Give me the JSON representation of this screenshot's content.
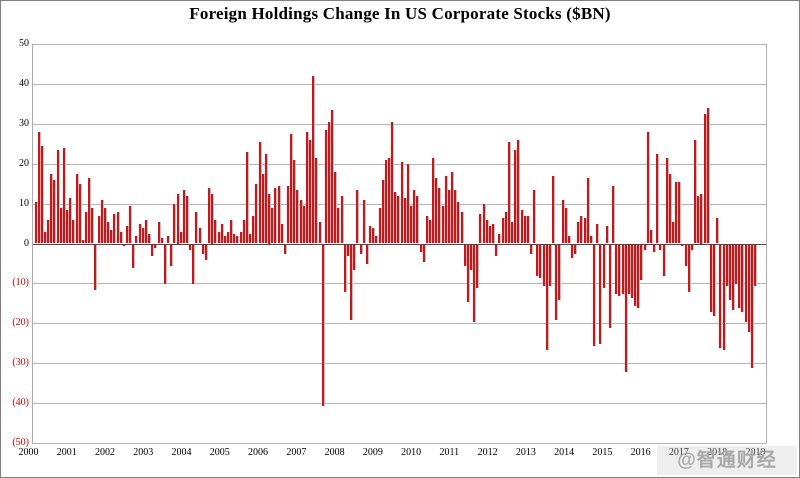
{
  "title": "Foreign Holdings Change In US Corporate Stocks ($BN)",
  "watermark": "@智通财经APP",
  "colors": {
    "bar": "#bf1a1d",
    "bar_highlight": "#efadad",
    "gridline": "#b5b5b5",
    "zero_line": "#4a4a4a",
    "negative_tick": "#d40000",
    "text": "#000000",
    "watermark_text": "#a9a9a9"
  },
  "chart_data": {
    "type": "bar",
    "title": "Foreign Holdings Change In US Corporate Stocks ($BN)",
    "xlabel": "",
    "ylabel": "",
    "unit": "$BN",
    "frequency": "monthly",
    "ylim": [
      -50,
      50
    ],
    "grid": true,
    "y_ticks": [
      50,
      40,
      30,
      20,
      10,
      0,
      -10,
      -20,
      -30,
      -40,
      -50
    ],
    "y_tick_labels": [
      "50",
      "40",
      "30",
      "20",
      "10",
      "0",
      "(10)",
      "(20)",
      "(30)",
      "(40)",
      "(50)"
    ],
    "year_labels": [
      "2000",
      "2001",
      "2002",
      "2003",
      "2004",
      "2005",
      "2006",
      "2007",
      "2008",
      "2009",
      "2010",
      "2011",
      "2012",
      "2013",
      "2014",
      "2015",
      "2016",
      "2017",
      "2018",
      "2019"
    ],
    "series": [
      {
        "year": 2000,
        "values": [
          10.5,
          28,
          24.5,
          3,
          6,
          17.5,
          16,
          23.5,
          9,
          24,
          8.5,
          11.5
        ]
      },
      {
        "year": 2001,
        "values": [
          6,
          17.5,
          15,
          1,
          8,
          16.5,
          9,
          -11.5,
          7,
          11,
          9,
          5.5
        ]
      },
      {
        "year": 2002,
        "values": [
          3.5,
          7.5,
          8,
          3,
          -0.5,
          4.5,
          9.5,
          -6,
          2,
          5,
          4,
          6
        ]
      },
      {
        "year": 2003,
        "values": [
          2.5,
          -3,
          -1,
          5.5,
          1.5,
          -10,
          2,
          -5.5,
          10,
          12.5,
          3,
          13.5
        ]
      },
      {
        "year": 2004,
        "values": [
          12,
          -1.5,
          -10,
          8,
          4,
          -2.5,
          -4,
          14,
          12.5,
          6,
          3,
          5
        ]
      },
      {
        "year": 2005,
        "values": [
          2,
          3,
          6,
          2.5,
          2,
          3,
          6,
          23,
          2.5,
          7,
          15,
          25.5
        ]
      },
      {
        "year": 2006,
        "values": [
          17.5,
          22.5,
          12.5,
          9,
          14,
          14.5,
          5,
          -2.5,
          14.5,
          27.5,
          21,
          13.5
        ]
      },
      {
        "year": 2007,
        "values": [
          11,
          9.5,
          28,
          26,
          42,
          21.5,
          5.5,
          -40.5,
          28.5,
          30.5,
          33.5,
          18
        ]
      },
      {
        "year": 2008,
        "values": [
          9,
          12,
          -12,
          -3,
          -19,
          -6.5,
          13.5,
          -2.5,
          11,
          -5,
          4.5,
          4
        ]
      },
      {
        "year": 2009,
        "values": [
          2,
          9,
          16,
          21,
          21.5,
          30.5,
          13,
          12,
          20.5,
          11.5,
          20,
          9.5
        ]
      },
      {
        "year": 2010,
        "values": [
          13.5,
          12,
          -2,
          -4.5,
          7,
          6,
          21.5,
          16.5,
          14,
          9.5,
          17,
          13.5
        ]
      },
      {
        "year": 2011,
        "values": [
          18,
          13.5,
          10.5,
          8,
          -5.5,
          -14.5,
          -6.5,
          -19.5,
          -11,
          7.5,
          10,
          6
        ]
      },
      {
        "year": 2012,
        "values": [
          4.5,
          5,
          -3,
          2.5,
          6.5,
          8,
          25.5,
          5.5,
          23.5,
          26,
          8.5,
          7
        ]
      },
      {
        "year": 2013,
        "values": [
          7,
          -2.5,
          13.5,
          -8,
          -8.5,
          -10.5,
          -26.5,
          -10.5,
          17,
          -19,
          -14,
          11
        ]
      },
      {
        "year": 2014,
        "values": [
          9,
          2,
          -3.5,
          -2.5,
          5.5,
          7,
          6.5,
          16.5,
          2,
          -25.5,
          5,
          -25
        ]
      },
      {
        "year": 2015,
        "values": [
          -11,
          4.5,
          -21,
          14.5,
          -12.5,
          -13,
          -12.5,
          -32,
          -12.5,
          -13.5,
          -15.5,
          -16
        ]
      },
      {
        "year": 2016,
        "values": [
          -9,
          -1.5,
          28,
          3.5,
          -2,
          22.5,
          -1.5,
          -8,
          21.5,
          17.5,
          5.5,
          15.5
        ]
      },
      {
        "year": 2017,
        "values": [
          15.5,
          -0.5,
          -5.5,
          -12,
          -1.5,
          26,
          12,
          12.5,
          32.5,
          34,
          -17,
          -18
        ]
      },
      {
        "year": 2018,
        "values": [
          6.5,
          -26,
          -26.5,
          -10.5,
          -14,
          -16.5,
          -10,
          -16,
          -17,
          -19.5,
          -22,
          -31
        ]
      },
      {
        "year": 2019,
        "values": [
          -10.5
        ]
      }
    ]
  }
}
